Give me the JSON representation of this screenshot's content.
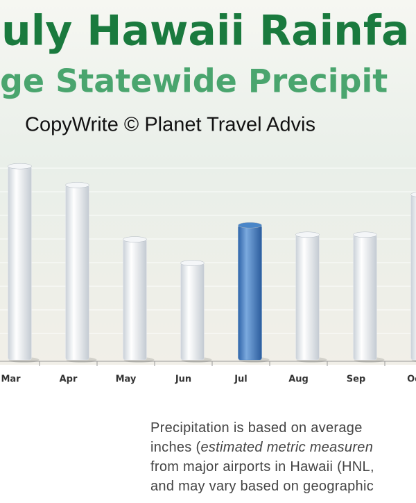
{
  "chart_data": {
    "type": "bar",
    "title": "uly Hawaii Rainfa",
    "subtitle": "ge Statewide Precipit",
    "copyright": "CopyWrite © Planet Travel Advis",
    "categories": [
      "Mar",
      "Apr",
      "May",
      "Jun",
      "Jul",
      "Aug",
      "Sep",
      "Oc"
    ],
    "values": [
      8.2,
      7.4,
      5.1,
      4.1,
      5.7,
      5.3,
      5.3,
      7.0
    ],
    "colors": [
      "#f4f6f8",
      "#f4f6f8",
      "#f4f6f8",
      "#f4f6f8",
      "#4a86c8",
      "#f4f6f8",
      "#f4f6f8",
      "#f4f6f8"
    ],
    "ylim": [
      0,
      10
    ],
    "note": [
      [
        "Precipitation is based on average"
      ],
      [
        "inches (",
        "estimated metric measuren"
      ],
      [
        "from major airports in Hawaii (HNL,"
      ],
      [
        "and may vary based on geographic"
      ]
    ]
  }
}
